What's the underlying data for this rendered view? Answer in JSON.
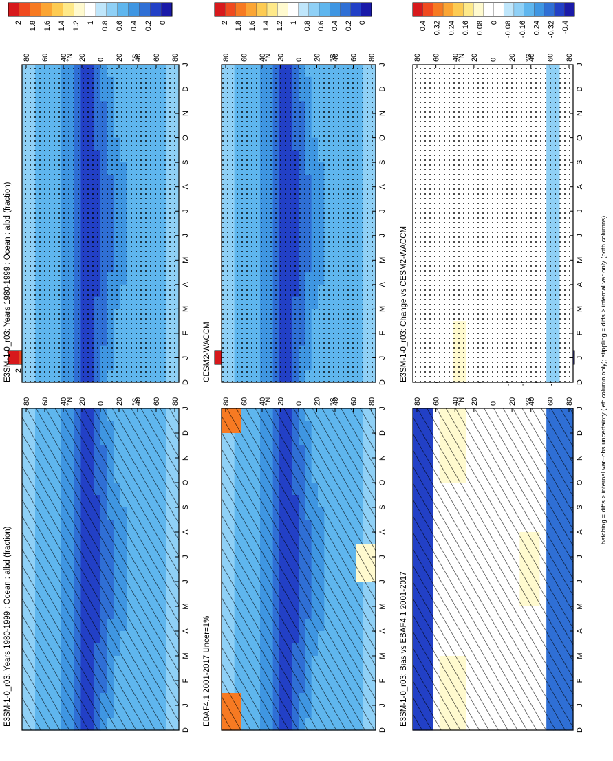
{
  "caption": "hatching = diffs > internal var+obs uncertainty (left column only); stippling = diffs > internal var only (both columns)",
  "chart_data": [
    {
      "type": "heatmap",
      "title": "E3SM-1-0_r03: Years 1980-1999 : Ocean : albd (fraction)",
      "x_ticks": [
        "D",
        "J",
        "F",
        "M",
        "A",
        "M",
        "J",
        "J",
        "A",
        "S",
        "O",
        "N",
        "D",
        "J"
      ],
      "y_ticks": [
        "80",
        "60",
        "40",
        "20",
        "0",
        "20",
        "40",
        "60",
        "80"
      ],
      "lat_labels": [
        "°N",
        "°S"
      ],
      "colorbar": {
        "labels": [
          "2",
          "1.8",
          "1.6",
          "1.4",
          "1.2",
          "1",
          "0.8",
          "0.6",
          "0.4",
          "0.2",
          "0"
        ],
        "kind": "abs"
      },
      "field": "abs",
      "overlay": "hatch"
    },
    {
      "type": "heatmap",
      "title": "E3SM-1-0_r03: Years 1980-1999 : Ocean : albd (fraction)",
      "x_ticks": [
        "D",
        "J",
        "F",
        "M",
        "A",
        "M",
        "J",
        "J",
        "A",
        "S",
        "O",
        "N",
        "D",
        "J"
      ],
      "y_ticks": [
        "80",
        "60",
        "40",
        "20",
        "0",
        "20",
        "40",
        "60",
        "80"
      ],
      "lat_labels": [
        "°N",
        "°S"
      ],
      "colorbar": {
        "labels": [
          "2",
          "1.8",
          "1.6",
          "1.4",
          "1.2",
          "1",
          "0.8",
          "0.6",
          "0.4",
          "0.2",
          "0"
        ],
        "kind": "abs"
      },
      "field": "abs",
      "overlay": "stipple"
    },
    {
      "type": "heatmap",
      "title": "EBAF4.1 2001-2017 Uncer=1%",
      "x_ticks": [
        "D",
        "J",
        "F",
        "M",
        "A",
        "M",
        "J",
        "J",
        "A",
        "S",
        "O",
        "N",
        "D",
        "J"
      ],
      "y_ticks": [
        "80",
        "60",
        "40",
        "20",
        "0",
        "20",
        "40",
        "60",
        "80"
      ],
      "lat_labels": [
        "°N",
        "°S"
      ],
      "colorbar": {
        "labels": [
          "2",
          "1.8",
          "1.6",
          "1.4",
          "1.2",
          "1",
          "0.8",
          "0.6",
          "0.4",
          "0.2",
          "0"
        ],
        "kind": "abs"
      },
      "field": "obs",
      "overlay": "hatch"
    },
    {
      "type": "heatmap",
      "title": "CESM2-WACCM",
      "x_ticks": [
        "D",
        "J",
        "F",
        "M",
        "A",
        "M",
        "J",
        "J",
        "A",
        "S",
        "O",
        "N",
        "D",
        "J"
      ],
      "y_ticks": [
        "80",
        "60",
        "40",
        "20",
        "0",
        "20",
        "40",
        "60",
        "80"
      ],
      "lat_labels": [
        "°N",
        "°S"
      ],
      "colorbar": {
        "labels": [
          "2",
          "1.8",
          "1.6",
          "1.4",
          "1.2",
          "1",
          "0.8",
          "0.6",
          "0.4",
          "0.2",
          "0"
        ],
        "kind": "abs"
      },
      "field": "abs",
      "overlay": "stipple"
    },
    {
      "type": "heatmap",
      "title": "E3SM-1-0_r03: Bias vs EBAF4.1 2001-2017",
      "x_ticks": [
        "D",
        "J",
        "F",
        "M",
        "A",
        "M",
        "J",
        "J",
        "A",
        "S",
        "O",
        "N",
        "D",
        "J"
      ],
      "y_ticks": [
        "80",
        "60",
        "40",
        "20",
        "0",
        "20",
        "40",
        "60",
        "80"
      ],
      "lat_labels": [
        "°N",
        "°S"
      ],
      "colorbar": {
        "labels": [
          "0.4",
          "0.32",
          "0.24",
          "0.16",
          "0.08",
          "0",
          "-0.08",
          "-0.16",
          "-0.24",
          "-0.32",
          "-0.4"
        ],
        "kind": "diff"
      },
      "field": "bias",
      "overlay": "hatch"
    },
    {
      "type": "heatmap",
      "title": "E3SM-1-0_r03: Change vs CESM2-WACCM",
      "x_ticks": [
        "D",
        "J",
        "F",
        "M",
        "A",
        "M",
        "J",
        "J",
        "A",
        "S",
        "O",
        "N",
        "D",
        "J"
      ],
      "y_ticks": [
        "80",
        "60",
        "40",
        "20",
        "0",
        "20",
        "40",
        "60",
        "80"
      ],
      "lat_labels": [
        "°N",
        "°S"
      ],
      "colorbar": {
        "labels": [
          "0.4",
          "0.32",
          "0.24",
          "0.16",
          "0.08",
          "0",
          "-0.08",
          "-0.16",
          "-0.24",
          "-0.32",
          "-0.4"
        ],
        "kind": "diff"
      },
      "field": "change",
      "overlay": "stipple"
    }
  ]
}
